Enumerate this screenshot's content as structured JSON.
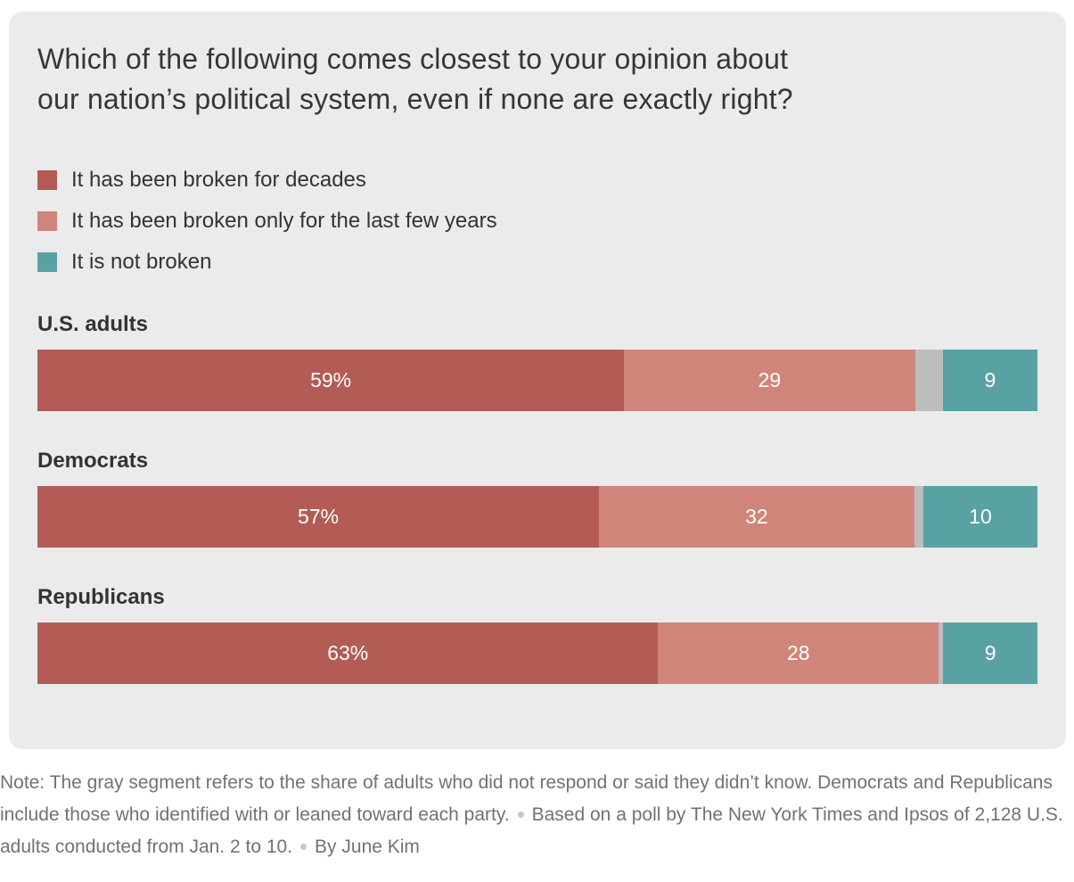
{
  "title": "Which of the following comes closest to your opinion about\nour nation’s political system, even if none are exactly right?",
  "colors": {
    "card_background": "#ebebeb",
    "broken_decades": "#b25c55",
    "broken_few_years": "#d0857a",
    "no_response_gray": "#bdbdbd",
    "not_broken_teal": "#58a2a4",
    "title_text": "#363636",
    "note_text": "#727272"
  },
  "chart_data": {
    "type": "bar",
    "orientation": "horizontal_stacked",
    "title": "Which of the following comes closest to your opinion about our nation’s political system, even if none are exactly right?",
    "categories": [
      "U.S. adults",
      "Democrats",
      "Republicans"
    ],
    "series": [
      {
        "name": "It has been broken for decades",
        "color": "#b25c55",
        "values": [
          59,
          57,
          63
        ],
        "labels": [
          "59%",
          "57%",
          "63%"
        ]
      },
      {
        "name": "It has been broken only for the last few years",
        "color": "#d0857a",
        "values": [
          29,
          32,
          28
        ],
        "labels": [
          "29",
          "32",
          "28"
        ]
      },
      {
        "name": "Did not respond or didn’t know (gray segment, unlabeled)",
        "color": "#bdbdbd",
        "values": [
          3,
          1,
          0.5
        ],
        "labels": [
          "",
          "",
          ""
        ]
      },
      {
        "name": "It is not broken",
        "color": "#58a2a4",
        "values": [
          9,
          10,
          9
        ],
        "labels": [
          "9",
          "10",
          "9"
        ]
      }
    ],
    "xlim": [
      0,
      100
    ],
    "grid": false,
    "legend_position": "top-left",
    "value_labels_inside": true
  },
  "note": {
    "part1": "Note: The gray segment refers to the share of adults who did not respond or said they didn’t know. Democrats and Republicans include those who identified with or leaned toward each party.",
    "part2": "Based on a poll by The New York Times and Ipsos of 2,128 U.S. adults conducted from Jan. 2 to 10.",
    "part3": "By June Kim"
  }
}
